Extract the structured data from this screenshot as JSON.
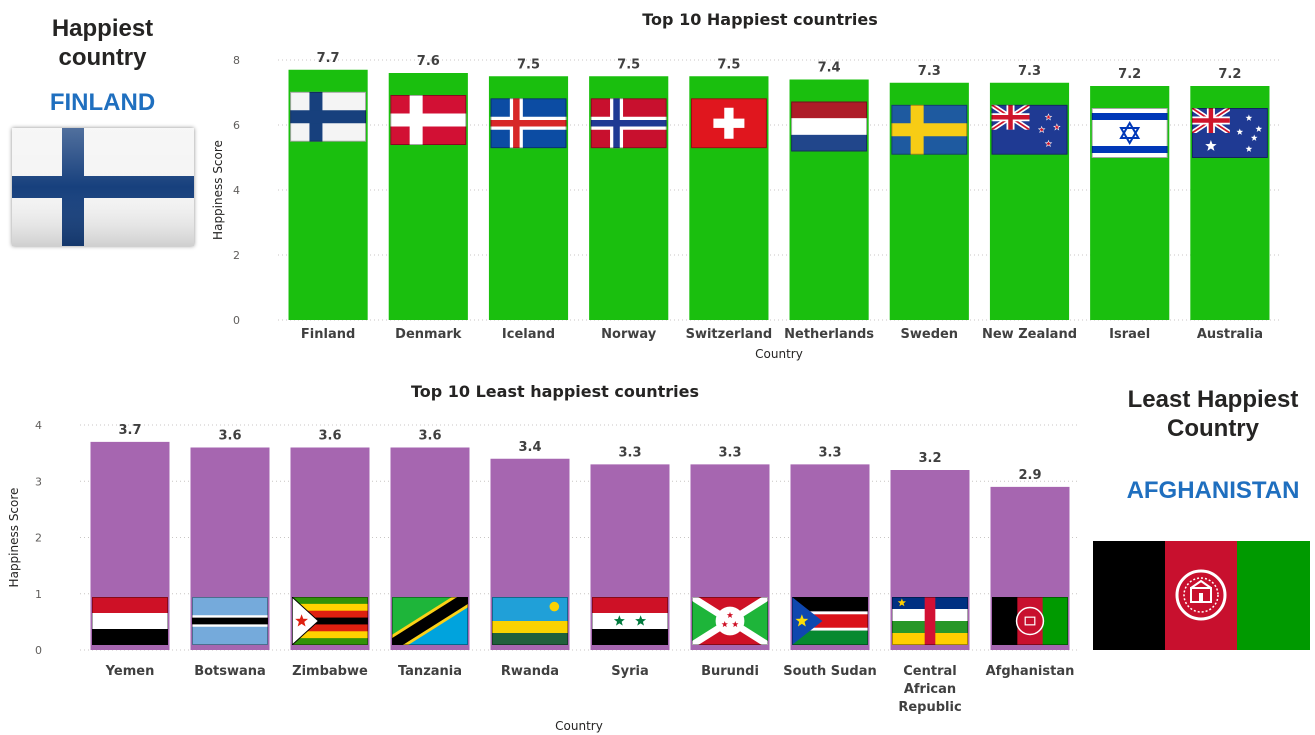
{
  "top_card": {
    "title": "Happiest country",
    "value": "FINLAND",
    "flag_icon": "finland-flag-icon"
  },
  "bottom_card": {
    "title": "Least Happiest Country",
    "value": "AFGHANISTAN",
    "flag_icon": "afghanistan-flag-icon"
  },
  "chart_data": [
    {
      "type": "bar",
      "title": "Top 10 Happiest countries",
      "xlabel": "Country",
      "ylabel": "Happiness Score",
      "ylim": [
        0,
        8
      ],
      "yticks": [
        0,
        2,
        4,
        6,
        8
      ],
      "bar_color": "#1abf0e",
      "categories": [
        "Finland",
        "Denmark",
        "Iceland",
        "Norway",
        "Switzerland",
        "Netherlands",
        "Sweden",
        "New Zealand",
        "Israel",
        "Australia"
      ],
      "values": [
        7.7,
        7.6,
        7.5,
        7.5,
        7.5,
        7.4,
        7.3,
        7.3,
        7.2,
        7.2
      ],
      "data_labels": [
        "7.7",
        "7.6",
        "7.5",
        "7.5",
        "7.5",
        "7.4",
        "7.3",
        "7.3",
        "7.2",
        "7.2"
      ],
      "legend": "none",
      "grid": true
    },
    {
      "type": "bar",
      "title": "Top 10 Least happiest countries",
      "xlabel": "Country",
      "ylabel": "Happiness Score",
      "ylim": [
        0,
        4
      ],
      "yticks": [
        0,
        1,
        2,
        3,
        4
      ],
      "bar_color": "#a666b0",
      "categories": [
        "Yemen",
        "Botswana",
        "Zimbabwe",
        "Tanzania",
        "Rwanda",
        "Syria",
        "Burundi",
        "South Sudan",
        "Central African Republic",
        "Afghanistan"
      ],
      "values": [
        3.7,
        3.6,
        3.6,
        3.6,
        3.4,
        3.3,
        3.3,
        3.3,
        3.2,
        2.9
      ],
      "data_labels": [
        "3.7",
        "3.6",
        "3.6",
        "3.6",
        "3.4",
        "3.3",
        "3.3",
        "3.3",
        "3.2",
        "2.9"
      ],
      "legend": "none",
      "grid": true
    }
  ]
}
